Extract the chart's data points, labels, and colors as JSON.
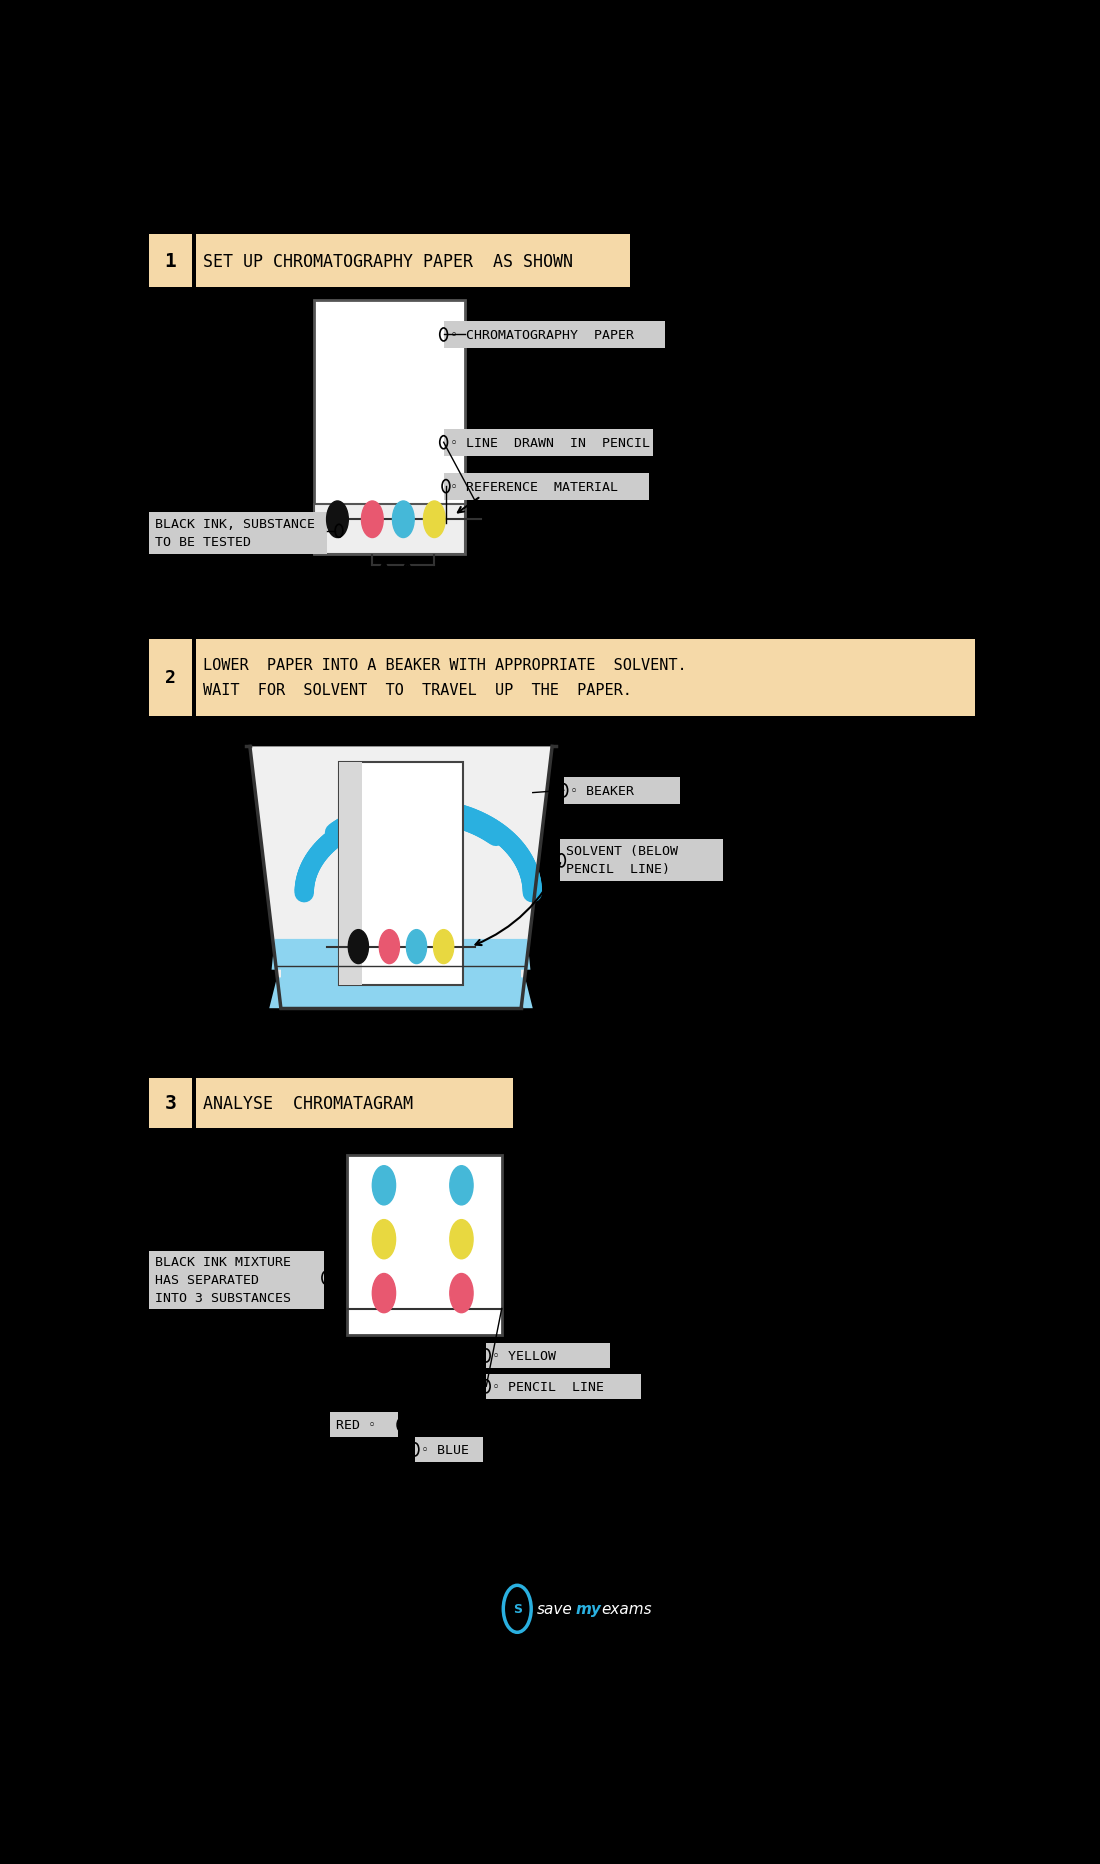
{
  "bg_color": "#000000",
  "paper_color": "#ffffff",
  "label_bg": "#cccccc",
  "step_bg": "#f5d9a8",
  "font_family": "monospace",
  "dot_colors": [
    "#111111",
    "#e85870",
    "#45b8d8",
    "#e8d840"
  ],
  "solvent_color": "#8dd4f0",
  "arrow_color": "#2ab0e0",
  "fig_w": 11.0,
  "fig_h": 18.65,
  "dpi": 100,
  "step1_num": "1",
  "step1_text": "SET UP CHROMATOGRAPHY PAPER  AS SHOWN",
  "step2_num": "2",
  "step2_line1": "LOWER  PAPER INTO A BEAKER WITH APPROPRIATE  SOLVENT.",
  "step2_line2": "WAIT  FOR  SOLVENT  TO  TRAVEL  UP  THE  PAPER.",
  "step3_num": "3",
  "step3_text": "ANALYSE  CHROMATAGRAM",
  "label_chrom_paper": "◦ CHROMATOGRAPHY  PAPER",
  "label_line_pencil": "◦ LINE  DRAWN  IN  PENCIL",
  "label_ref_material": "◦ REFERENCE  MATERIAL",
  "label_black_ink": "BLACK INK, SUBSTANCE\nTO BE TESTED",
  "label_beaker": "◦ BEAKER",
  "label_solvent": "SOLVENT (BELOW\nPENCIL  LINE)",
  "label_pencil_line": "◦ PENCIL  LINE",
  "label_yellow": "◦ YELLOW",
  "label_red": "RED ◦",
  "label_blue": "◦ BLUE",
  "label_black_ink_sep": "BLACK INK MIXTURE\nHAS SEPARATED\nINTO 3 SUBSTANCES",
  "logo_text_save": "save",
  "logo_text_my": "my",
  "logo_text_exams": "exams"
}
